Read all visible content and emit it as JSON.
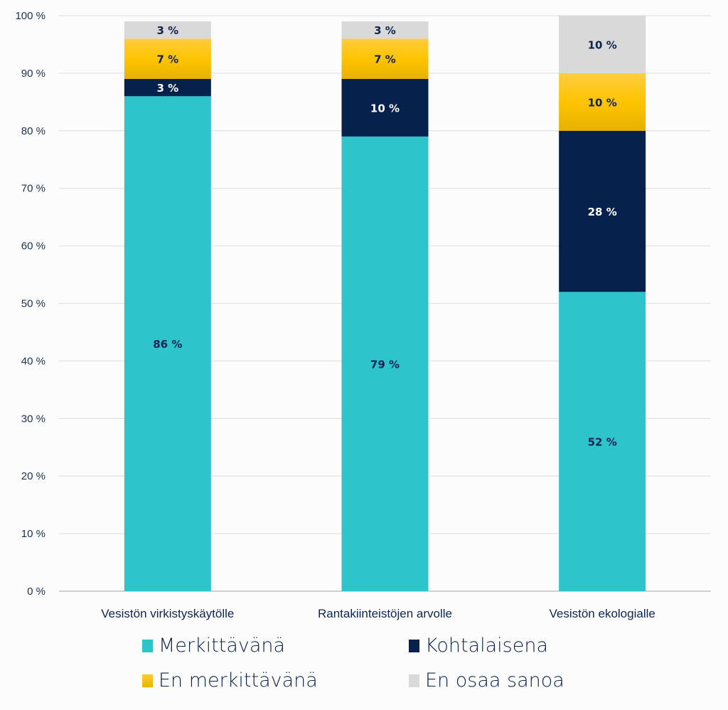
{
  "chart_data": {
    "type": "bar",
    "stacked": true,
    "title": "",
    "xlabel": "",
    "ylabel": "",
    "ylim": [
      0,
      100
    ],
    "yticks": [
      "0 %",
      "10 %",
      "20 %",
      "30 %",
      "40 %",
      "50 %",
      "60 %",
      "70 %",
      "80 %",
      "90 %",
      "100 %"
    ],
    "grid": true,
    "legend_position": "bottom",
    "categories": [
      "Vesistön virkistyskäytölle",
      "Rantakiinteistöjen arvolle",
      "Vesistön ekologialle"
    ],
    "series": [
      {
        "name": "Merkittävänä",
        "color": "#2ec4cc",
        "label_color": "#0f2550",
        "values": [
          86,
          79,
          52
        ],
        "labels": [
          "86 %",
          "79 %",
          "52 %"
        ]
      },
      {
        "name": "Kohtalaisena",
        "color": "#06214c",
        "label_color": "#ffffff",
        "values": [
          3,
          10,
          28
        ],
        "labels": [
          "3 %",
          "10 %",
          "28 %"
        ]
      },
      {
        "name": "En merkittävänä",
        "color": "#ffc20e",
        "label_color": "#0f2550",
        "values": [
          7,
          7,
          10
        ],
        "labels": [
          "7 %",
          "7 %",
          "10 %"
        ]
      },
      {
        "name": "En osaa sanoa",
        "color": "#d9d9d9",
        "label_color": "#0f2550",
        "values": [
          3,
          3,
          10
        ],
        "labels": [
          "3 %",
          "3 %",
          "10 %"
        ]
      }
    ]
  }
}
